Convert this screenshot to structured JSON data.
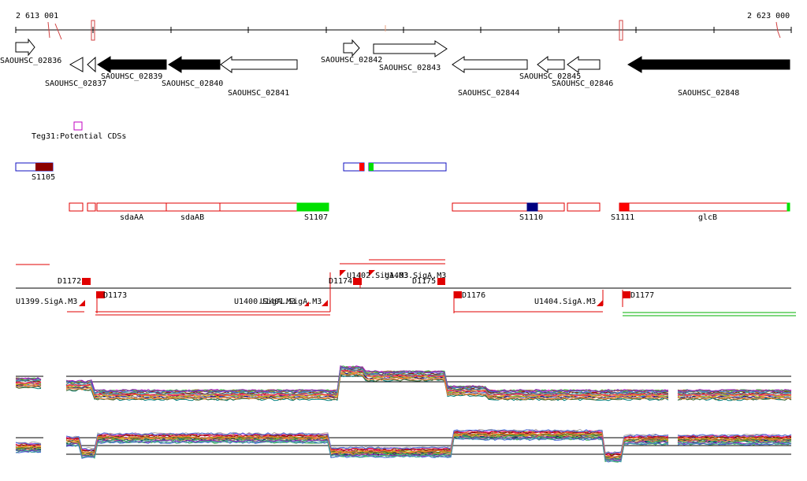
{
  "ruler": {
    "start_label": "2 613 001",
    "end_label": "2 623 000"
  },
  "genes": [
    {
      "name": "SAOUHSC_02836",
      "filled": false,
      "strand": "+"
    },
    {
      "name": "SAOUHSC_02837",
      "filled": false,
      "strand": "-"
    },
    {
      "name": "SAOUHSC_02839",
      "filled": true,
      "strand": "-"
    },
    {
      "name": "SAOUHSC_02840",
      "filled": true,
      "strand": "-"
    },
    {
      "name": "SAOUHSC_02841",
      "filled": false,
      "strand": "-"
    },
    {
      "name": "SAOUHSC_02842",
      "filled": false,
      "strand": "+"
    },
    {
      "name": "SAOUHSC_02843",
      "filled": false,
      "strand": "+"
    },
    {
      "name": "SAOUHSC_02844",
      "filled": false,
      "strand": "-"
    },
    {
      "name": "SAOUHSC_02845",
      "filled": false,
      "strand": "-"
    },
    {
      "name": "SAOUHSC_02846",
      "filled": false,
      "strand": "-"
    },
    {
      "name": "SAOUHSC_02848",
      "filled": true,
      "strand": "-"
    }
  ],
  "teg_track": {
    "label": "Teg31:Potential CDSs"
  },
  "s_track": {
    "features": [
      "S1105"
    ]
  },
  "operon_track": {
    "labels": [
      "sdaAA",
      "sdaAB",
      "S1107",
      "S1110",
      "S1111",
      "glcB"
    ]
  },
  "promoter_track": {
    "labels": [
      "D1172",
      "D1173",
      "U1399.SigA.M3",
      "U1400.SigA.M3",
      "U1401.SigA.M3",
      "D1174",
      "U1402.SigA.M3",
      "U1403.SigA.M3",
      "D1175",
      "D1176",
      "U1404.SigA.M3",
      "D1177"
    ]
  },
  "colors": {
    "feature_outline": "#e00000",
    "s_outline": "#1010c0",
    "expressed": "#00e000",
    "dark_block": "#8b0000",
    "navy_block": "#000080",
    "teg_box": "#c000c0"
  }
}
